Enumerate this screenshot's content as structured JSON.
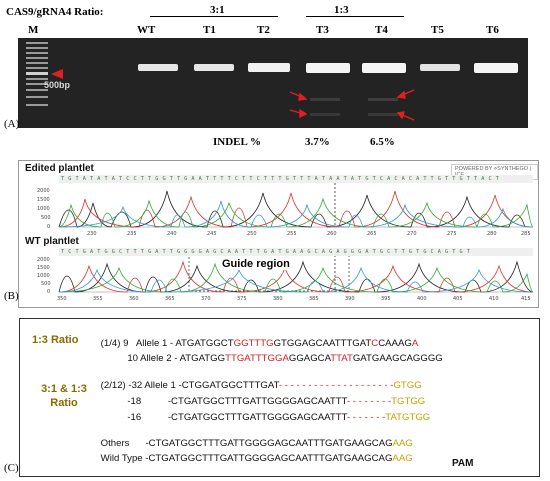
{
  "panel_a": {
    "letter": "(A)",
    "ratio_title": "CAS9/gRNA4 Ratio:",
    "group_31": "3:1",
    "group_13": "1:3",
    "lanes": [
      "M",
      "WT",
      "T1",
      "T2",
      "T3",
      "T4",
      "T5",
      "T6"
    ],
    "marker_label": "500bp",
    "indel_label": "INDEL %",
    "indel_t3": "3.7%",
    "indel_t4": "6.5%",
    "colors": {
      "gel": "#232323",
      "band": "#e8e8e8",
      "arrow": "#e02020"
    }
  },
  "panel_b": {
    "letter": "(B)",
    "edited_title": "Edited plantlet",
    "wt_title": "WT plantlet",
    "guide_label": "Guide region",
    "logo": "POWERED BY ⋄SYNTHEGO | ICE",
    "edited_yticks": [
      "2000",
      "1500",
      "1000",
      "500",
      "0"
    ],
    "wt_yticks": [
      "2000",
      "1500",
      "1000",
      "500",
      "0"
    ],
    "edited_xticks": [
      "230",
      "235",
      "240",
      "245",
      "250",
      "255",
      "260",
      "265",
      "270",
      "275",
      "280",
      "285"
    ],
    "wt_xticks": [
      "350",
      "355",
      "360",
      "365",
      "370",
      "375",
      "380",
      "385",
      "390",
      "395",
      "400",
      "405",
      "410",
      "415"
    ],
    "edited_seq": "T G T A T A T A T C C T T G G T T G A A T T T T C T T C T T T G T T T A T A A T A T G T C A C A C A T T G T T G T T A C T",
    "wt_seq": "T C T G A T G G C T T T G A T T G G G G A G C A A T T T G A T G A A G C A G A G G G A T G C T T G T G C A G T G T"
  },
  "panel_c": {
    "letter": "(C)",
    "ratio_13": "1:3 Ratio",
    "ratio_3113_line1": "3:1 & 1:3",
    "ratio_3113_line2": "Ratio",
    "r1_prefix": "(1/4) 9   Allele 1 - ",
    "r1_a": "ATGATGGCT",
    "r1_b": "GGTTTG",
    "r1_c": "GTGGAGCAATTTGAT",
    "r1_d": "C",
    "r1_e": "CAAAG",
    "r1_f": "A",
    "r2_prefix": "          10 Allele 2 - ",
    "r2_a": "ATGATGG",
    "r2_b": "TTGATTTGGA",
    "r2_c": "GGAGCA",
    "r2_d": "TTAT",
    "r2_e": "GATGAAGCAGGGG",
    "r3_prefix": "(2/12) -32 Allele 1 -",
    "r3_seq": "CTGGATGGCTTTGAT",
    "r3_dash": "- - - - - - - - - - - - - - - - - - - -",
    "r3_end": "GTGG",
    "r4_prefix": "          -18          -",
    "r4_seq": "CTGATGGCTTTGATTGGGGAGCAATTT",
    "r4_dash": "- - - - - - - -",
    "r4_end": "TGTGG",
    "r5_prefix": "          -16          -",
    "r5_seq": "CTGATGGCTTTGATTGGGGAGCAATTT",
    "r5_dash": "- - - - - - -",
    "r5_end": "TATGTGG",
    "others_prefix": "Others      -",
    "others_seq": "CTGATGGCTTTGATTGGGGAGCAATTTGATGAAGCAG",
    "others_pam": "AAG",
    "wt_prefix": "Wild Type -",
    "wt_seq": "CTGATGGCTTTGATTGGGGAGCAATTTGATGAAGCAG",
    "wt_pam": "AAG",
    "pam_label": "PAM"
  }
}
